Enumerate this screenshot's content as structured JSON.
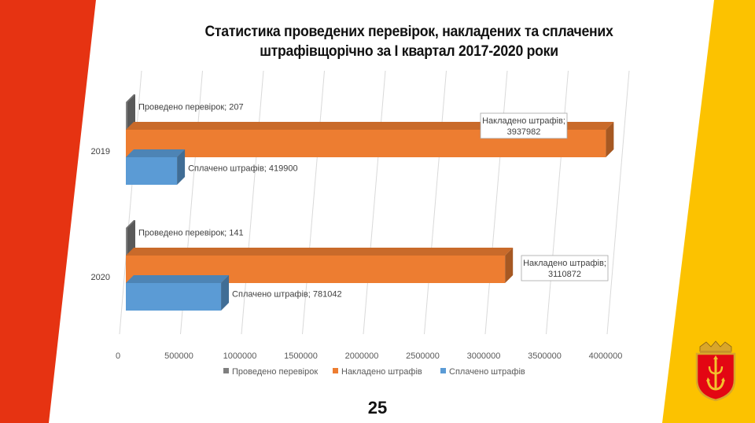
{
  "slide": {
    "title_line1": "Статистика проведених перевірок, накладених та сплачених",
    "title_line2": "штрафівщорічно за І квартал 2017-2020 роки",
    "page_number": "25",
    "colors": {
      "left_band": "#e63312",
      "right_band": "#fcc200"
    }
  },
  "chart_data": {
    "type": "bar",
    "orientation": "horizontal",
    "style": "3d",
    "categories": [
      "2019",
      "2020"
    ],
    "series": [
      {
        "name": "Проведено перевірок",
        "color": "#7f7f7f",
        "values": [
          207,
          141
        ],
        "labels": [
          "Проведено перевірок; 207",
          "Проведено перевірок; 141"
        ]
      },
      {
        "name": "Накладено штрафів",
        "color": "#ed7d31",
        "values": [
          3937982,
          3110872
        ],
        "labels": [
          [
            "Накладено штрафів;",
            "3937982"
          ],
          [
            "Накладено штрафів;",
            "3110872"
          ]
        ]
      },
      {
        "name": "Сплачено штрафів",
        "color": "#5b9bd5",
        "values": [
          419900,
          781042
        ],
        "labels": [
          "Сплачено штрафів; 419900",
          "Сплачено штрафів; 781042"
        ]
      }
    ],
    "xlim": [
      0,
      4000000
    ],
    "xticks": [
      "0",
      "500000",
      "1000000",
      "1500000",
      "2000000",
      "2500000",
      "3000000",
      "3500000",
      "4000000"
    ],
    "grid": true,
    "legend_position": "bottom"
  }
}
